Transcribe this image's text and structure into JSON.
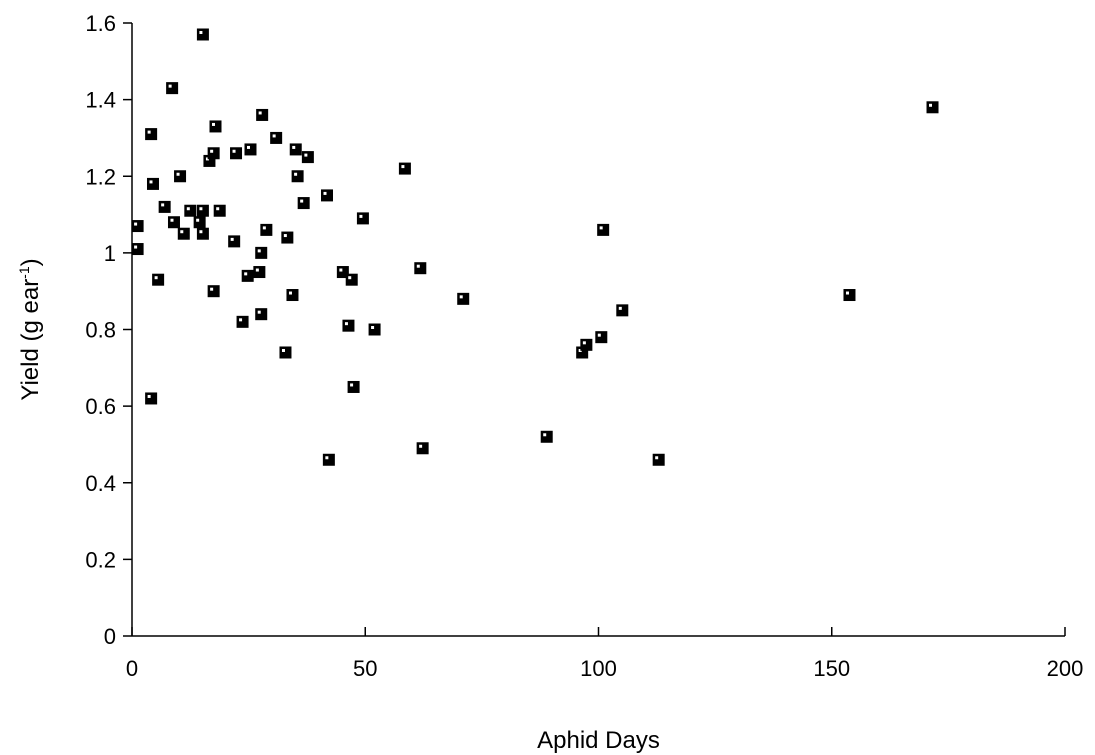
{
  "chart_data": {
    "type": "scatter",
    "xlabel": "Aphid Days",
    "ylabel": "Yield (g ear",
    "ylabel_superscript": "-1",
    "ylabel_suffix": ")",
    "xlim": [
      0,
      200
    ],
    "ylim": [
      0,
      1.6
    ],
    "x_ticks": [
      0,
      50,
      100,
      150,
      200
    ],
    "y_ticks": [
      0,
      0.2,
      0.4,
      0.6,
      0.8,
      1,
      1.2,
      1.4,
      1.6
    ],
    "x_tick_labels": [
      "0",
      "50",
      "100",
      "150",
      "200"
    ],
    "y_tick_labels": [
      "0",
      "0.2",
      "0.4",
      "0.6",
      "0.8",
      "1",
      "1.2",
      "1.4",
      "1.6"
    ],
    "grid": false,
    "legend": "none",
    "marker": "square",
    "marker_color": "#000000",
    "points": [
      {
        "x": 1.2,
        "y": 1.07
      },
      {
        "x": 1.2,
        "y": 1.01
      },
      {
        "x": 4.1,
        "y": 1.31
      },
      {
        "x": 4.5,
        "y": 1.18
      },
      {
        "x": 4.1,
        "y": 0.62
      },
      {
        "x": 5.6,
        "y": 0.93
      },
      {
        "x": 7.0,
        "y": 1.12
      },
      {
        "x": 8.6,
        "y": 1.43
      },
      {
        "x": 9.0,
        "y": 1.08
      },
      {
        "x": 10.3,
        "y": 1.2
      },
      {
        "x": 11.1,
        "y": 1.05
      },
      {
        "x": 12.5,
        "y": 1.11
      },
      {
        "x": 14.5,
        "y": 1.08
      },
      {
        "x": 15.2,
        "y": 1.11
      },
      {
        "x": 15.2,
        "y": 1.05
      },
      {
        "x": 15.2,
        "y": 1.57
      },
      {
        "x": 16.6,
        "y": 1.24
      },
      {
        "x": 17.5,
        "y": 1.26
      },
      {
        "x": 17.5,
        "y": 0.9
      },
      {
        "x": 17.9,
        "y": 1.33
      },
      {
        "x": 18.8,
        "y": 1.11
      },
      {
        "x": 21.9,
        "y": 1.03
      },
      {
        "x": 22.3,
        "y": 1.26
      },
      {
        "x": 23.7,
        "y": 0.82
      },
      {
        "x": 24.8,
        "y": 0.94
      },
      {
        "x": 25.4,
        "y": 1.27
      },
      {
        "x": 27.3,
        "y": 0.95
      },
      {
        "x": 27.7,
        "y": 0.84
      },
      {
        "x": 27.7,
        "y": 1.0
      },
      {
        "x": 27.9,
        "y": 1.36
      },
      {
        "x": 28.8,
        "y": 1.06
      },
      {
        "x": 30.9,
        "y": 1.3
      },
      {
        "x": 32.9,
        "y": 0.74
      },
      {
        "x": 33.3,
        "y": 1.04
      },
      {
        "x": 34.4,
        "y": 0.89
      },
      {
        "x": 35.1,
        "y": 1.27
      },
      {
        "x": 35.5,
        "y": 1.2
      },
      {
        "x": 36.8,
        "y": 1.13
      },
      {
        "x": 37.7,
        "y": 1.25
      },
      {
        "x": 41.8,
        "y": 1.15
      },
      {
        "x": 42.2,
        "y": 0.46
      },
      {
        "x": 45.2,
        "y": 0.95
      },
      {
        "x": 46.4,
        "y": 0.81
      },
      {
        "x": 47.1,
        "y": 0.93
      },
      {
        "x": 47.5,
        "y": 0.65
      },
      {
        "x": 49.5,
        "y": 1.09
      },
      {
        "x": 52.0,
        "y": 0.8
      },
      {
        "x": 58.5,
        "y": 1.22
      },
      {
        "x": 61.8,
        "y": 0.96
      },
      {
        "x": 62.3,
        "y": 0.49
      },
      {
        "x": 71.0,
        "y": 0.88
      },
      {
        "x": 88.9,
        "y": 0.52
      },
      {
        "x": 96.5,
        "y": 0.74
      },
      {
        "x": 97.4,
        "y": 0.76
      },
      {
        "x": 100.6,
        "y": 0.78
      },
      {
        "x": 101.0,
        "y": 1.06
      },
      {
        "x": 105.1,
        "y": 0.85
      },
      {
        "x": 112.9,
        "y": 0.46
      },
      {
        "x": 153.8,
        "y": 0.89
      },
      {
        "x": 171.6,
        "y": 1.38
      }
    ]
  }
}
